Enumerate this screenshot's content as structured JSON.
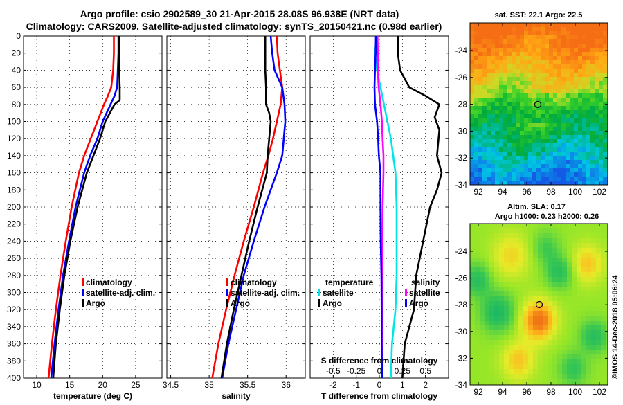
{
  "header": {
    "line1": "Argo profile: csio 2902589_30 21-Apr-2015 28.08S 96.938E (NRT data)",
    "line2": "Climatology: CARS2009. Satellite-adjusted climatology: synTS_20150421.nc (0.98d earlier)"
  },
  "colors": {
    "climatology": "#ff0000",
    "satellite": "#0000ff",
    "argo": "#000000",
    "s_diff": "#ff00ff",
    "t_diff": "#00e5e5"
  },
  "chart_data": [
    {
      "type": "line",
      "panel": "temperature",
      "xlabel": "temperature (deg C)",
      "xlim": [
        8,
        29
      ],
      "xticks": [
        10,
        15,
        20,
        25
      ],
      "ylim": [
        400,
        0
      ],
      "yticks": [
        0,
        20,
        40,
        60,
        80,
        100,
        120,
        140,
        160,
        180,
        200,
        220,
        240,
        260,
        280,
        300,
        320,
        340,
        360,
        380,
        400
      ],
      "legend": [
        "climatology",
        "satellite-adj. clim.",
        "Argo"
      ],
      "series": [
        {
          "name": "climatology",
          "color": "#ff0000",
          "depth": [
            0,
            20,
            40,
            60,
            70,
            80,
            100,
            120,
            140,
            160,
            200,
            240,
            280,
            320,
            360,
            400
          ],
          "values": [
            21.7,
            21.7,
            21.6,
            21.3,
            20.8,
            20.2,
            19.2,
            18.2,
            17.2,
            16.4,
            15.3,
            14.4,
            13.6,
            12.9,
            12.3,
            11.8
          ]
        },
        {
          "name": "satellite-adj. clim.",
          "color": "#0000ff",
          "depth": [
            0,
            20,
            40,
            60,
            70,
            80,
            100,
            120,
            140,
            160,
            200,
            240,
            280,
            320,
            360,
            400
          ],
          "values": [
            22.4,
            22.4,
            22.3,
            22.2,
            21.8,
            21.2,
            20.0,
            19.2,
            18.1,
            17.2,
            15.9,
            14.9,
            14.0,
            13.3,
            12.7,
            12.2
          ]
        },
        {
          "name": "Argo",
          "color": "#000000",
          "depth": [
            0,
            20,
            40,
            60,
            75,
            80,
            100,
            120,
            140,
            160,
            200,
            240,
            280,
            320,
            360,
            400
          ],
          "values": [
            22.5,
            22.5,
            22.5,
            22.6,
            22.6,
            21.8,
            20.4,
            19.6,
            18.6,
            17.6,
            16.2,
            15.1,
            14.2,
            13.5,
            12.9,
            12.5
          ]
        }
      ]
    },
    {
      "type": "line",
      "panel": "salinity",
      "xlabel": "salinity",
      "xlim": [
        34.45,
        36.25
      ],
      "xticks": [
        34.5,
        35,
        35.5,
        36
      ],
      "xticklabels": [
        "34.5",
        "35",
        "35.5",
        "36"
      ],
      "ylim": [
        400,
        0
      ],
      "legend": [
        "climatology",
        "satellite-adj. clim.",
        "Argo"
      ],
      "series": [
        {
          "name": "climatology",
          "color": "#ff0000",
          "depth": [
            0,
            20,
            40,
            60,
            80,
            100,
            120,
            140,
            160,
            200,
            240,
            280,
            320,
            360,
            400
          ],
          "values": [
            35.88,
            35.89,
            35.92,
            35.95,
            35.93,
            35.88,
            35.83,
            35.77,
            35.7,
            35.58,
            35.45,
            35.33,
            35.22,
            35.12,
            35.04
          ]
        },
        {
          "name": "satellite-adj. clim.",
          "color": "#0000ff",
          "depth": [
            0,
            20,
            40,
            60,
            80,
            100,
            120,
            140,
            160,
            200,
            240,
            280,
            320,
            360,
            400
          ],
          "values": [
            35.8,
            35.82,
            35.85,
            35.95,
            35.98,
            35.99,
            35.97,
            35.95,
            35.88,
            35.72,
            35.58,
            35.45,
            35.35,
            35.25,
            35.17
          ]
        },
        {
          "name": "Argo",
          "color": "#000000",
          "depth": [
            0,
            20,
            40,
            60,
            80,
            90,
            100,
            120,
            140,
            160,
            200,
            240,
            280,
            320,
            360,
            400
          ],
          "values": [
            35.73,
            35.73,
            35.73,
            35.74,
            35.74,
            35.78,
            35.8,
            35.78,
            35.76,
            35.75,
            35.63,
            35.52,
            35.42,
            35.32,
            35.23,
            35.16
          ]
        }
      ]
    },
    {
      "type": "line",
      "panel": "differences",
      "xlabel": "T difference from climatology",
      "xlabel_top": "S difference from climatology",
      "xlim": [
        -3,
        3
      ],
      "xticks": [
        -2,
        -1,
        0,
        1,
        2
      ],
      "top_xlim": [
        -0.75,
        0.75
      ],
      "top_xticks": [
        -0.5,
        -0.25,
        0,
        0.25,
        0.5
      ],
      "top_xticklabels": [
        "-0.5",
        "-0.25",
        "0",
        "0.25",
        "0.5"
      ],
      "ylim": [
        400,
        0
      ],
      "legend_left": {
        "title": "temperature",
        "items": [
          "satellite",
          "Argo"
        ]
      },
      "legend_right": {
        "title": "salinity",
        "items": [
          "satellite",
          "Argo"
        ]
      },
      "series": [
        {
          "name": "temperature satellite",
          "color": "#00e5e5",
          "depth": [
            0,
            20,
            40,
            60,
            80,
            100,
            120,
            140,
            160,
            200,
            240,
            280,
            320,
            360,
            400
          ],
          "values": [
            -0.1,
            -0.2,
            -0.1,
            0.05,
            0.2,
            0.35,
            0.5,
            0.6,
            0.7,
            0.75,
            0.75,
            0.75,
            0.7,
            0.55,
            0.5
          ]
        },
        {
          "name": "temperature Argo",
          "color": "#000000",
          "depth": [
            0,
            20,
            40,
            60,
            70,
            80,
            95,
            110,
            140,
            160,
            180,
            200,
            240,
            280,
            320,
            360,
            400
          ],
          "values": [
            0.8,
            0.8,
            0.9,
            1.3,
            2.0,
            2.6,
            2.4,
            2.6,
            2.5,
            2.7,
            2.5,
            2.2,
            1.9,
            1.6,
            1.5,
            1.1,
            1.0
          ]
        },
        {
          "name": "salinity satellite",
          "color": "#ff00ff",
          "depth": [
            0,
            20,
            40,
            60,
            80,
            100,
            120,
            140,
            160,
            200,
            240,
            280,
            320,
            360,
            400
          ],
          "values": [
            -0.08,
            -0.07,
            -0.07,
            -0.03,
            0.05,
            0.11,
            0.14,
            0.18,
            0.18,
            0.14,
            0.13,
            0.12,
            0.13,
            0.13,
            0.13
          ]
        },
        {
          "name": "salinity Argo",
          "color": "#0000ff",
          "depth": [
            0,
            20,
            40,
            60,
            80,
            100,
            120,
            140,
            160,
            200,
            240,
            280,
            320,
            360,
            400
          ],
          "values": [
            -0.15,
            -0.16,
            -0.19,
            -0.21,
            -0.19,
            -0.1,
            -0.05,
            -0.02,
            0.05,
            0.05,
            0.06,
            0.09,
            0.1,
            0.1,
            0.12
          ]
        }
      ]
    }
  ],
  "sst_map": {
    "title": "sat. SST: 22.1 Argo: 22.5",
    "xticks": [
      "92",
      "94",
      "96",
      "98",
      "100",
      "102"
    ],
    "yticks": [
      "-24",
      "-26",
      "-28",
      "-30",
      "-32",
      "-34"
    ]
  },
  "sla_map": {
    "title1": "Altim. SLA: 0.17",
    "title2": "Argo h1000: 0.23 h2000: 0.26",
    "xticks": [
      "92",
      "94",
      "96",
      "98",
      "100",
      "102"
    ],
    "yticks": [
      "-24",
      "-26",
      "-28",
      "-30",
      "-32",
      "-34"
    ]
  },
  "footer": {
    "credit": "©IMOS 14-Dec-2018 05:06:24"
  }
}
